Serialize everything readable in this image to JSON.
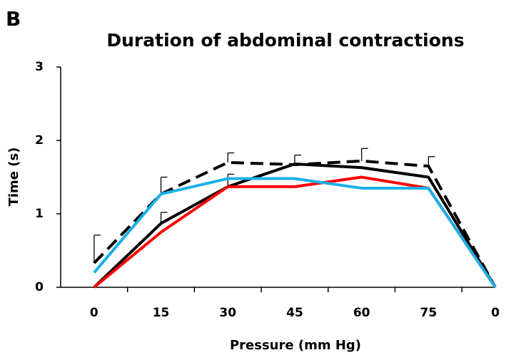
{
  "chart_data": {
    "type": "line",
    "panel_label": "B",
    "title": "Duration of abdominal contractions",
    "x_label": "Pressure (mm Hg)",
    "y_label": "Time (s)",
    "categories": [
      "0",
      "15",
      "30",
      "45",
      "60",
      "75",
      "0"
    ],
    "ylim": [
      0,
      3
    ],
    "yticks": [
      0,
      1,
      2,
      3
    ],
    "series": [
      {
        "color": "#000000",
        "dashed": true,
        "values": [
          0.33,
          1.27,
          1.7,
          1.67,
          1.72,
          1.65,
          0
        ],
        "errors": [
          0.38,
          0.23,
          0.13,
          0.13,
          0.17,
          0.13,
          null
        ]
      },
      {
        "color": "#000000",
        "dashed": false,
        "values": [
          0,
          0.87,
          1.37,
          1.68,
          1.63,
          1.5,
          0
        ],
        "errors": [
          null,
          0.15,
          0.17,
          null,
          null,
          null,
          null
        ]
      },
      {
        "color": "#ff0000",
        "dashed": false,
        "values": [
          0,
          0.75,
          1.37,
          1.37,
          1.5,
          1.35,
          0
        ]
      },
      {
        "color": "#1ab0e8",
        "dashed": false,
        "values": [
          0.2,
          1.27,
          1.48,
          1.48,
          1.35,
          1.35,
          0
        ]
      }
    ]
  }
}
